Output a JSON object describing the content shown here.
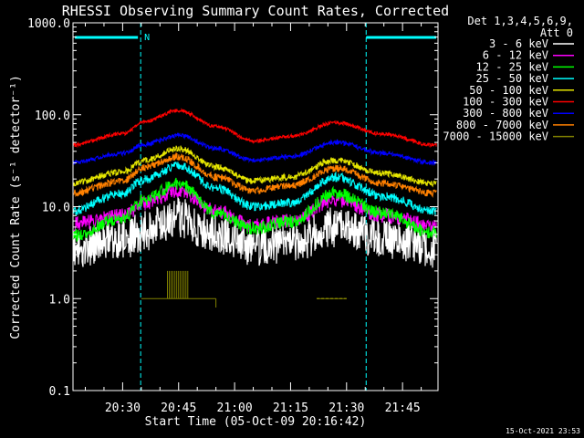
{
  "chart_data": {
    "type": "line",
    "title": "RHESSI Observing Summary Count Rates, Corrected",
    "xlabel": "Start Time (05-Oct-09 20:16:42)",
    "ylabel": "Corrected Count Rate (s⁻¹ detector⁻¹)",
    "yscale": "log",
    "ylim": [
      0.1,
      1000.0
    ],
    "xlim": [
      "20:16:42",
      "21:54:30"
    ],
    "y_ticks": [
      "0.1",
      "1.0",
      "10.0",
      "100.0",
      "1000.0"
    ],
    "x_ticks": [
      "20:30",
      "20:45",
      "21:00",
      "21:15",
      "21:30",
      "21:45"
    ],
    "legend_header": [
      "Det 1,3,4,5,6,9,",
      "Att 0"
    ],
    "legend_position": "right",
    "timestamp": "15-Oct-2021 23:53",
    "flag_label": "N",
    "night_intervals": [
      [
        "20:16:42",
        "20:34:50"
      ],
      [
        "21:35:15",
        "21:54:30"
      ]
    ],
    "series": [
      {
        "name": "3 - 6 keV",
        "color": "#ffffff",
        "t": [
          "20:16",
          "20:30",
          "20:36",
          "20:45",
          "20:55",
          "21:05",
          "21:15",
          "21:27",
          "21:40",
          "21:53"
        ],
        "values": [
          3.5,
          4.3,
          5.5,
          7.5,
          5.0,
          3.7,
          4.0,
          6.0,
          4.5,
          3.5
        ]
      },
      {
        "name": "6 - 12 keV",
        "color": "#ff00ff",
        "t": [
          "20:16",
          "20:30",
          "20:36",
          "20:45",
          "20:55",
          "21:05",
          "21:15",
          "21:27",
          "21:40",
          "21:53"
        ],
        "values": [
          6.5,
          8.0,
          11.0,
          15.0,
          9.0,
          6.2,
          7.0,
          12.0,
          8.0,
          6.3
        ]
      },
      {
        "name": "12 - 25 keV",
        "color": "#00ff00",
        "t": [
          "20:16",
          "20:30",
          "20:36",
          "20:45",
          "20:55",
          "21:05",
          "21:15",
          "21:27",
          "21:40",
          "21:53"
        ],
        "values": [
          4.8,
          7.5,
          12.0,
          18.0,
          8.5,
          5.8,
          6.8,
          14.0,
          8.5,
          5.2
        ]
      },
      {
        "name": "25 - 50 keV",
        "color": "#00ffff",
        "t": [
          "20:16",
          "20:30",
          "20:36",
          "20:45",
          "20:55",
          "21:05",
          "21:15",
          "21:27",
          "21:40",
          "21:53"
        ],
        "values": [
          9.0,
          14.0,
          20.0,
          28.0,
          16.0,
          10.0,
          11.0,
          21.0,
          13.0,
          9.0
        ]
      },
      {
        "name": "50 - 100 keV",
        "color": "#e6e600",
        "t": [
          "20:16",
          "20:30",
          "20:36",
          "20:45",
          "20:55",
          "21:05",
          "21:15",
          "21:27",
          "21:40",
          "21:53"
        ],
        "values": [
          18.0,
          24.0,
          32.0,
          43.0,
          27.0,
          19.0,
          21.0,
          32.0,
          23.0,
          18.0
        ]
      },
      {
        "name": "100 - 300 keV",
        "color": "#ff0000",
        "t": [
          "20:16",
          "20:30",
          "20:36",
          "20:45",
          "20:55",
          "21:05",
          "21:15",
          "21:27",
          "21:40",
          "21:53"
        ],
        "values": [
          47.0,
          62.0,
          85.0,
          112.0,
          75.0,
          52.0,
          58.0,
          82.0,
          62.0,
          47.0
        ]
      },
      {
        "name": "300 - 800 keV",
        "color": "#0000ff",
        "t": [
          "20:16",
          "20:30",
          "20:36",
          "20:45",
          "20:55",
          "21:05",
          "21:15",
          "21:27",
          "21:40",
          "21:53"
        ],
        "values": [
          30.0,
          38.0,
          48.0,
          60.0,
          43.0,
          32.0,
          35.0,
          50.0,
          38.0,
          30.0
        ]
      },
      {
        "name": "800 - 7000 keV",
        "color": "#ff8000",
        "t": [
          "20:16",
          "20:30",
          "20:36",
          "20:45",
          "20:55",
          "21:05",
          "21:15",
          "21:27",
          "21:40",
          "21:53"
        ],
        "values": [
          14.0,
          19.0,
          27.0,
          35.0,
          21.0,
          15.0,
          17.0,
          26.0,
          18.0,
          14.0
        ]
      },
      {
        "name": "7000 - 15000 keV",
        "color": "#808000",
        "t": [
          "20:35",
          "20:38",
          "20:40",
          "20:42",
          "20:43",
          "20:44",
          "20:45",
          "20:46",
          "20:48",
          "20:50",
          "20:55",
          "21:22",
          "21:25",
          "21:28",
          "21:30"
        ],
        "values": [
          1.0,
          1.0,
          1.0,
          2.0,
          1.0,
          2.0,
          1.0,
          2.0,
          1.0,
          1.0,
          1.0,
          1.0,
          1.0,
          1.0,
          1.0
        ]
      }
    ]
  }
}
